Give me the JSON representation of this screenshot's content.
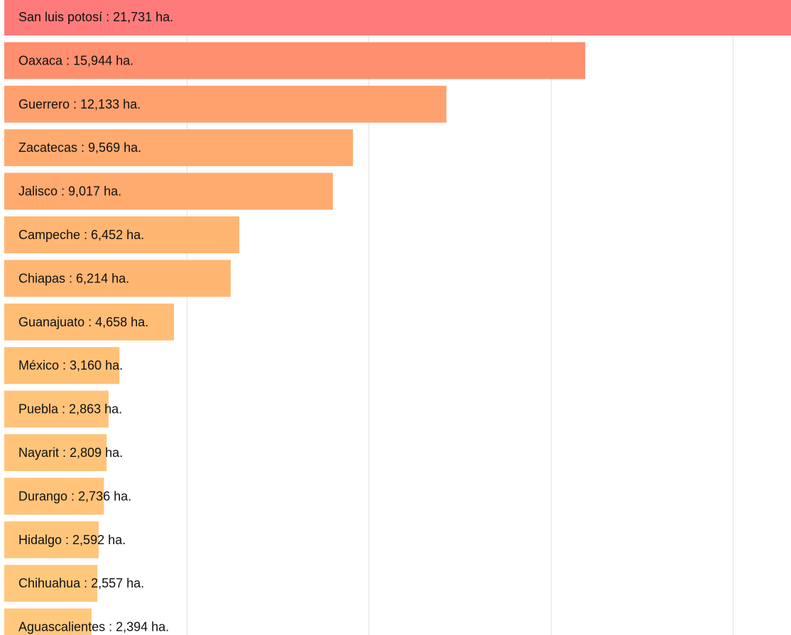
{
  "chart_data": {
    "type": "bar",
    "orientation": "horizontal",
    "unit_suffix": "ha.",
    "grid": true,
    "x_grid_step": 5000,
    "categories": [
      "San luis potosí",
      "Oaxaca",
      "Guerrero",
      "Zacatecas",
      "Jalisco",
      "Campeche",
      "Chiapas",
      "Guanajuato",
      "México",
      "Puebla",
      "Nayarit",
      "Durango",
      "Hidalgo",
      "Chihuahua",
      "Aguascalientes"
    ],
    "values": [
      21731,
      15944,
      12133,
      9569,
      9017,
      6452,
      6214,
      4658,
      3160,
      2863,
      2809,
      2736,
      2592,
      2557,
      2394
    ],
    "labels": [
      "San luis potosí : 21,731 ha.",
      "Oaxaca : 15,944 ha.",
      "Guerrero : 12,133 ha.",
      "Zacatecas : 9,569 ha.",
      "Jalisco : 9,017 ha.",
      "Campeche : 6,452 ha.",
      "Chiapas : 6,214 ha.",
      "Guanajuato : 4,658 ha.",
      "México : 3,160 ha.",
      "Puebla : 2,863 ha.",
      "Nayarit : 2,809 ha.",
      "Durango : 2,736 ha.",
      "Hidalgo : 2,592 ha.",
      "Chihuahua : 2,557 ha.",
      "Aguascalientes : 2,394 ha."
    ],
    "colors": [
      "#ff7b7b",
      "#ff8f6e",
      "#ffa06f",
      "#ffab6f",
      "#ffaa6f",
      "#ffb673",
      "#ffb673",
      "#ffbd76",
      "#ffc176",
      "#ffc47a",
      "#ffc47a",
      "#ffc47a",
      "#ffc67b",
      "#ffc87c",
      "#ffc87c"
    ]
  }
}
